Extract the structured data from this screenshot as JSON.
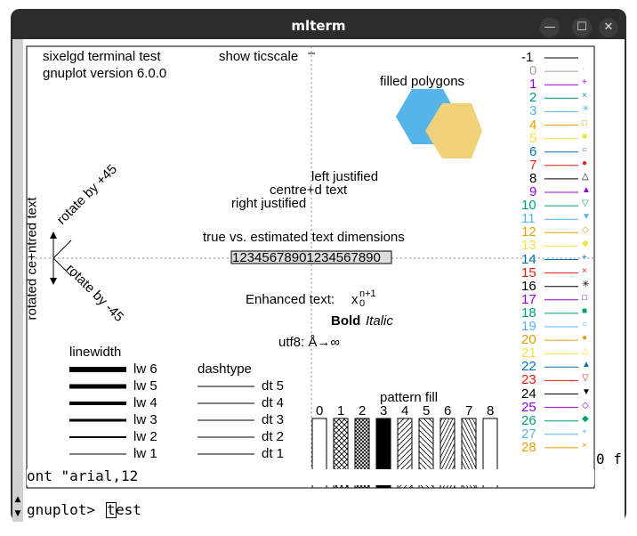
{
  "window": {
    "title": "mlterm",
    "min_symbol": "—",
    "max_symbol": "☐",
    "close_symbol": "✕"
  },
  "plot": {
    "header1": "sixelgd  terminal test",
    "header2": "gnuplot version 6.0.0",
    "ticscale": "show ticscale",
    "filled_polygons": "filled polygons",
    "left_justified": "left justified",
    "centred": "centre+d text",
    "right_justified": "right justified",
    "rotated": "rotated ce+ntred text",
    "rot_pos": "rotate by +45",
    "rot_neg": "rotate by -45",
    "estimated": "true vs. estimated text dimensions",
    "digits": "12345678901234567890",
    "enhanced": "Enhanced text:",
    "x": "x",
    "sub": "0",
    "sup": "n+1",
    "bold": "Bold",
    "italic": "Italic",
    "utf8": "utf8: Å→∞",
    "linewidth": "linewidth",
    "dashtype": "dashtype",
    "pattern_fill": "pattern fill",
    "lw_labels": [
      "lw 6",
      "lw 5",
      "lw 4",
      "lw 3",
      "lw 2",
      "lw 1"
    ],
    "dt_labels": [
      "dt 5",
      "dt 4",
      "dt 3",
      "dt 2",
      "dt 1"
    ],
    "pattern_labels": [
      "0",
      "1",
      "2",
      "3",
      "4",
      "5",
      "6",
      "7",
      "8"
    ],
    "legend": [
      {
        "label": "-1",
        "color": "#000000",
        "marker": ""
      },
      {
        "label": "0",
        "color": "#a0a0a0",
        "marker": "·"
      },
      {
        "label": "1",
        "color": "#9400d3",
        "marker": "+"
      },
      {
        "label": "2",
        "color": "#009e73",
        "marker": "×"
      },
      {
        "label": "3",
        "color": "#56b4e9",
        "marker": "✳"
      },
      {
        "label": "4",
        "color": "#e69f00",
        "marker": "□"
      },
      {
        "label": "5",
        "color": "#f0e442",
        "marker": "■"
      },
      {
        "label": "6",
        "color": "#0072b2",
        "marker": "○"
      },
      {
        "label": "7",
        "color": "#e51e10",
        "marker": "●"
      },
      {
        "label": "8",
        "color": "#000000",
        "marker": "△"
      },
      {
        "label": "9",
        "color": "#9400d3",
        "marker": "▲"
      },
      {
        "label": "10",
        "color": "#009e73",
        "marker": "▽"
      },
      {
        "label": "11",
        "color": "#56b4e9",
        "marker": "▼"
      },
      {
        "label": "12",
        "color": "#e69f00",
        "marker": "◇"
      },
      {
        "label": "13",
        "color": "#f0e442",
        "marker": "◆"
      },
      {
        "label": "14",
        "color": "#0072b2",
        "marker": "+"
      },
      {
        "label": "15",
        "color": "#e51e10",
        "marker": "×"
      },
      {
        "label": "16",
        "color": "#000000",
        "marker": "✳"
      },
      {
        "label": "17",
        "color": "#9400d3",
        "marker": "□"
      },
      {
        "label": "18",
        "color": "#009e73",
        "marker": "■"
      },
      {
        "label": "19",
        "color": "#56b4e9",
        "marker": "○"
      },
      {
        "label": "20",
        "color": "#e69f00",
        "marker": "●"
      },
      {
        "label": "21",
        "color": "#f0e442",
        "marker": "△"
      },
      {
        "label": "22",
        "color": "#0072b2",
        "marker": "▲"
      },
      {
        "label": "23",
        "color": "#e51e10",
        "marker": "▽"
      },
      {
        "label": "24",
        "color": "#000000",
        "marker": "▼"
      },
      {
        "label": "25",
        "color": "#9400d3",
        "marker": "◇"
      },
      {
        "label": "26",
        "color": "#009e73",
        "marker": "◆"
      },
      {
        "label": "27",
        "color": "#56b4e9",
        "marker": "+"
      },
      {
        "label": "28",
        "color": "#e69f00",
        "marker": "×"
      }
    ],
    "hex_colors": [
      "#56b4e9",
      "#f0d27a"
    ]
  },
  "terminal": {
    "overlay_line": "ont \"arial,12",
    "right_fragment": "0 f",
    "prompt": "gnuplot> ",
    "cursor_char": "t",
    "typed": "est"
  }
}
